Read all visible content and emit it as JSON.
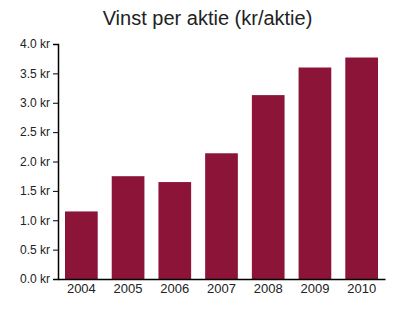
{
  "chart_data": {
    "type": "bar",
    "title": "Vinst per aktie (kr/aktie)",
    "categories": [
      "2004",
      "2005",
      "2006",
      "2007",
      "2008",
      "2009",
      "2010"
    ],
    "values": [
      1.15,
      1.75,
      1.65,
      2.14,
      3.13,
      3.6,
      3.77
    ],
    "color": "#8c1438",
    "ylim": [
      0,
      4
    ],
    "yticks": [
      {
        "value": 0,
        "label": "0.0 kr"
      },
      {
        "value": 0.5,
        "label": "0.5 kr"
      },
      {
        "value": 1,
        "label": "1.0 kr"
      },
      {
        "value": 1.5,
        "label": "1.5 kr"
      },
      {
        "value": 2,
        "label": "2.0 kr"
      },
      {
        "value": 2.5,
        "label": "2.5 kr"
      },
      {
        "value": 3,
        "label": "3.0 kr"
      },
      {
        "value": 3.5,
        "label": "3.5 kr"
      },
      {
        "value": 4,
        "label": "4.0 kr"
      }
    ],
    "grid": false
  }
}
